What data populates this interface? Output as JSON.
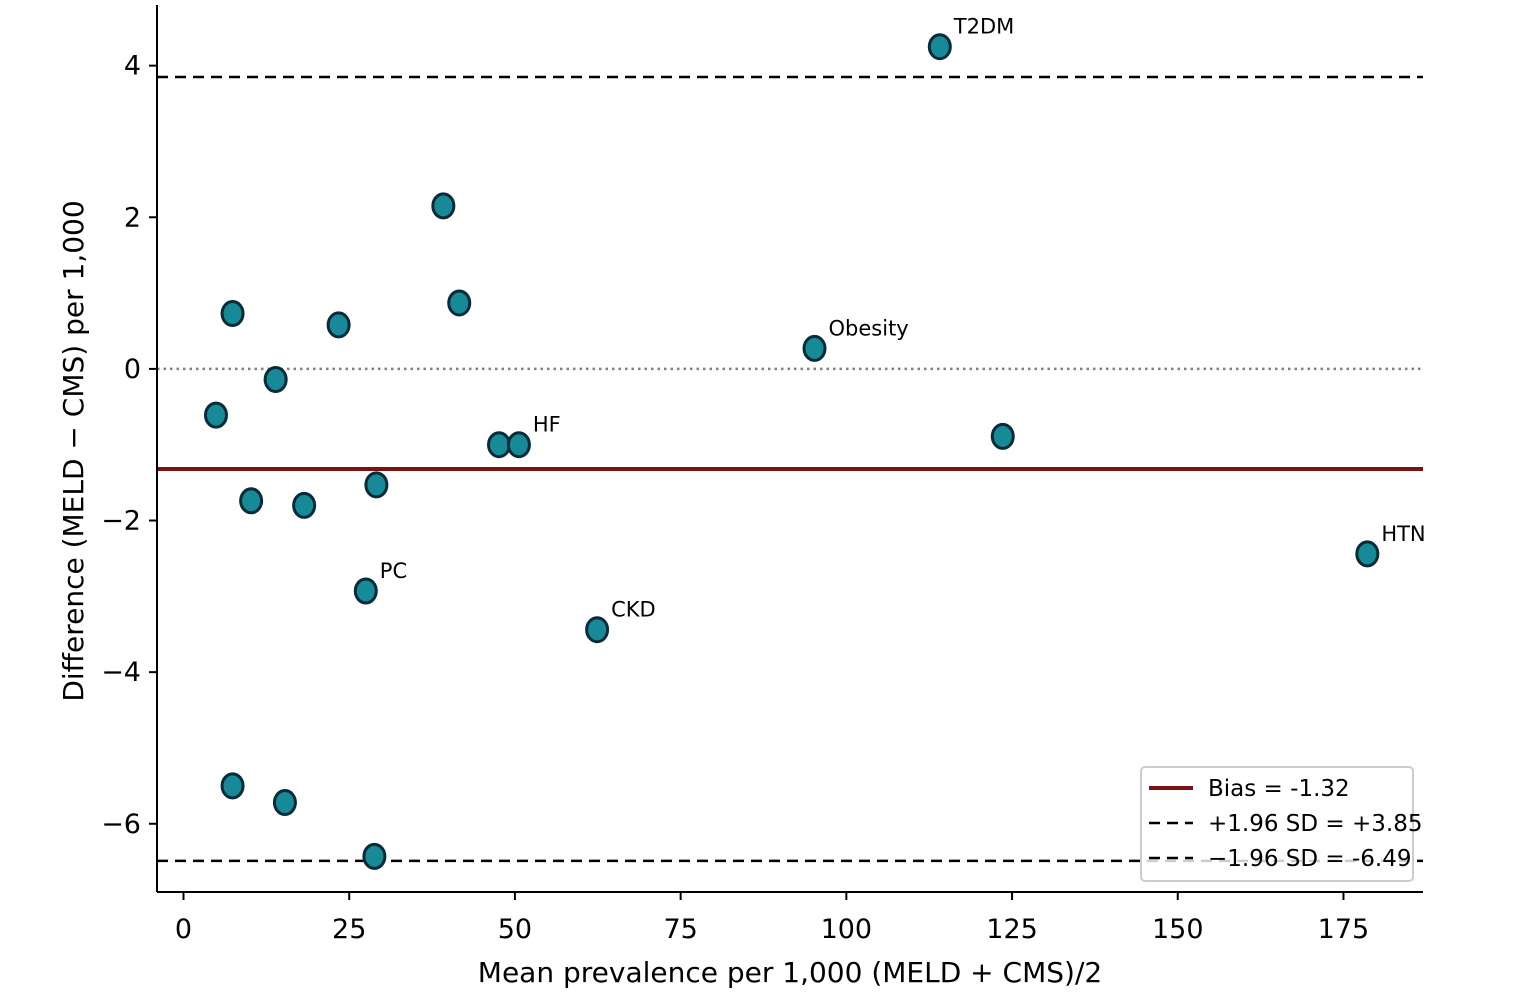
{
  "chart_data": {
    "type": "scatter",
    "title": "",
    "xlabel": "Mean prevalence per 1,000 (MELD + CMS)/2",
    "ylabel": "Difference (MELD − CMS) per 1,000",
    "xlim": [
      -4,
      187
    ],
    "ylim": [
      -6.9,
      4.8
    ],
    "xticks": [
      0,
      25,
      50,
      75,
      100,
      125,
      150,
      175
    ],
    "xtick_labels": [
      "0",
      "25",
      "50",
      "75",
      "100",
      "125",
      "150",
      "175"
    ],
    "yticks": [
      4,
      2,
      0,
      -2,
      -4,
      -6
    ],
    "ytick_labels": [
      "4",
      "2",
      "0",
      "−2",
      "−4",
      "−6"
    ],
    "grid": false,
    "points": [
      {
        "x": 114.1,
        "y": 4.25,
        "label": "T2DM"
      },
      {
        "x": 39.2,
        "y": 2.15,
        "label": ""
      },
      {
        "x": 41.6,
        "y": 0.87,
        "label": ""
      },
      {
        "x": 7.4,
        "y": 0.73,
        "label": ""
      },
      {
        "x": 23.4,
        "y": 0.58,
        "label": ""
      },
      {
        "x": 95.2,
        "y": 0.27,
        "label": "Obesity"
      },
      {
        "x": 13.9,
        "y": -0.14,
        "label": ""
      },
      {
        "x": 4.9,
        "y": -0.61,
        "label": ""
      },
      {
        "x": 47.6,
        "y": -1.0,
        "label": ""
      },
      {
        "x": 50.6,
        "y": -1.0,
        "label": "HF"
      },
      {
        "x": 123.6,
        "y": -0.89,
        "label": ""
      },
      {
        "x": 29.1,
        "y": -1.53,
        "label": ""
      },
      {
        "x": 10.2,
        "y": -1.74,
        "label": ""
      },
      {
        "x": 18.2,
        "y": -1.8,
        "label": ""
      },
      {
        "x": 178.6,
        "y": -2.44,
        "label": "HTN"
      },
      {
        "x": 27.5,
        "y": -2.93,
        "label": "PC"
      },
      {
        "x": 62.4,
        "y": -3.44,
        "label": "CKD"
      },
      {
        "x": 7.4,
        "y": -5.5,
        "label": ""
      },
      {
        "x": 15.3,
        "y": -5.72,
        "label": ""
      },
      {
        "x": 28.8,
        "y": -6.43,
        "label": ""
      }
    ],
    "reference_lines": [
      {
        "name": "Bias = -1.32",
        "y": -1.32,
        "style": "solid",
        "color": "#7a1212"
      },
      {
        "name": "+1.96 SD = +3.85",
        "y": 3.85,
        "style": "dashed",
        "color": "#000000"
      },
      {
        "name": "−1.96 SD = -6.49",
        "y": -6.49,
        "style": "dashed",
        "color": "#000000"
      },
      {
        "name": "",
        "y": 0,
        "style": "dotted",
        "color": "#808080"
      }
    ],
    "marker_color": "#168a96",
    "marker_edge_color": "#0b2a3a",
    "legend_placement": "bottom-right"
  }
}
